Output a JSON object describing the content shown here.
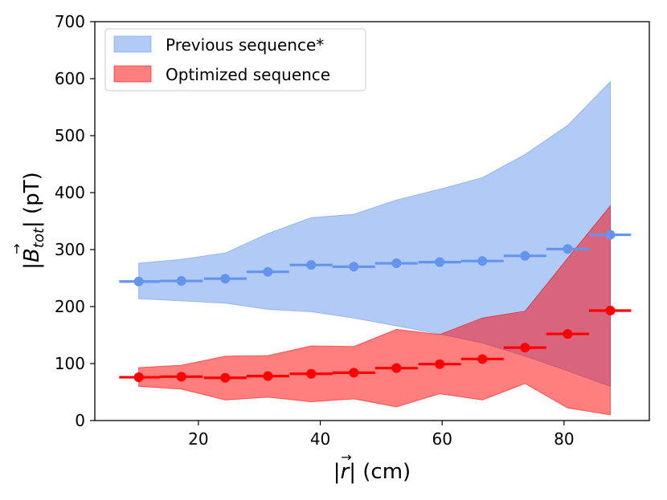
{
  "chart_data": {
    "type": "area",
    "title": "",
    "xlabel": "|r⃗| (cm)",
    "xlabel_parts": {
      "open": "|",
      "var": "r",
      "arrow": "→",
      "close": "| (cm)"
    },
    "ylabel": "|B⃗tot| (pT)",
    "ylabel_parts": {
      "open": "|",
      "var": "B",
      "sub": "tot",
      "arrow": "→",
      "close": "| (pT)"
    },
    "xlim": [
      3,
      94
    ],
    "ylim": [
      0,
      700
    ],
    "xticks": [
      20,
      40,
      60,
      80
    ],
    "yticks": [
      0,
      100,
      200,
      300,
      400,
      500,
      600,
      700
    ],
    "grid": false,
    "legend_position": "top-left",
    "series": [
      {
        "name": "Previous sequence*",
        "fill_color": "#6495ed",
        "marker_color": "#6495ed",
        "x": [
          10.2,
          17.2,
          24.4,
          31.4,
          38.5,
          45.5,
          52.5,
          59.6,
          66.6,
          73.6,
          80.6,
          87.6
        ],
        "values": [
          244,
          245,
          249,
          261,
          273,
          270,
          276,
          278,
          280,
          289,
          301,
          326
        ],
        "xerr": 3.5,
        "band_lower": [
          214,
          210,
          206,
          195,
          191,
          180,
          166,
          152,
          136,
          113,
          87,
          60
        ],
        "band_upper": [
          276,
          283,
          294,
          328,
          356,
          362,
          387,
          406,
          426,
          467,
          518,
          595
        ],
        "extra_xerr": {
          "first_left": 7,
          "last_right": 91
        }
      },
      {
        "name": "Optimized sequence",
        "fill_color": "#ff0000",
        "marker_color": "#ff0000",
        "x": [
          10.2,
          17.2,
          24.4,
          31.4,
          38.5,
          45.5,
          52.5,
          59.6,
          66.6,
          73.6,
          80.6,
          87.6
        ],
        "values": [
          76,
          77,
          75,
          78,
          82,
          84,
          92,
          99,
          108,
          128,
          152,
          193
        ],
        "xerr": 3.5,
        "band_lower": [
          60,
          55,
          36,
          41,
          33,
          38,
          24,
          47,
          36,
          65,
          22,
          10
        ],
        "band_upper": [
          93,
          97,
          113,
          114,
          131,
          130,
          160,
          151,
          180,
          192,
          285,
          377
        ],
        "extra_xerr": {
          "first_left": 7,
          "last_right": 91
        }
      }
    ]
  }
}
